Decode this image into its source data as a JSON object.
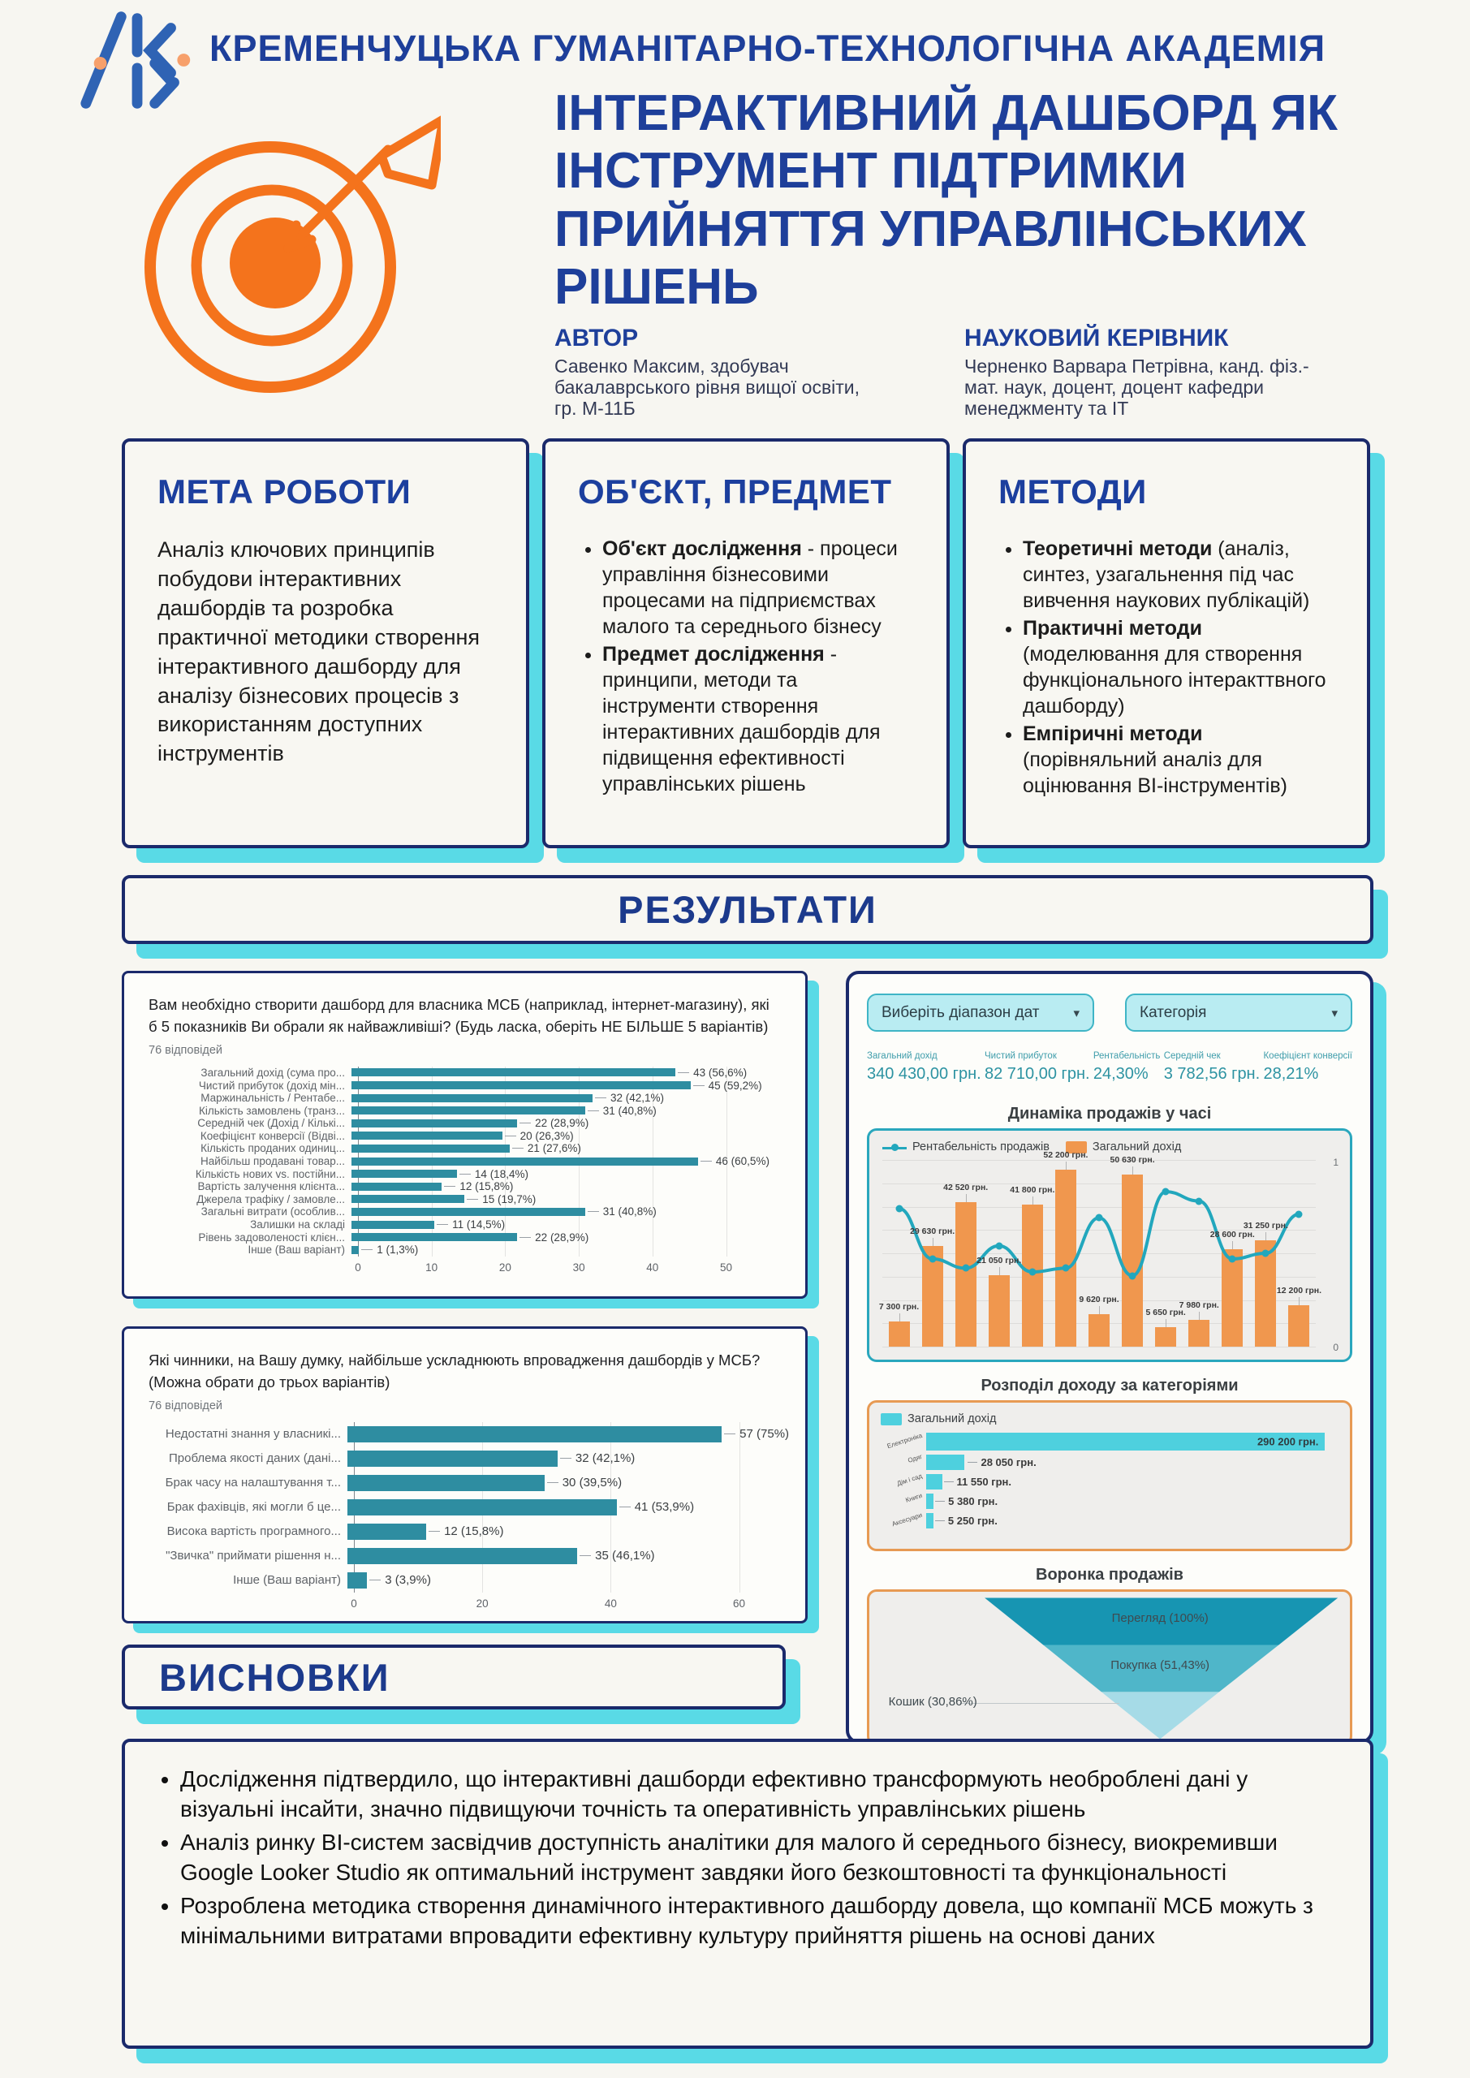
{
  "header": {
    "academy": "КРЕМЕНЧУЦЬКА ГУМАНІТАРНО-ТЕХНОЛОГІЧНА АКАДЕМІЯ"
  },
  "title": "ІНТЕРАКТИВНИЙ ДАШБОРД ЯК\nІНСТРУМЕНТ ПІДТРИМКИ\nПРИЙНЯТТЯ УПРАВЛІНСЬКИХ\nРІШЕНЬ",
  "author": {
    "heading": "АВТОР",
    "text": "Савенко Максим, здобувач\nбакалаврського рівня вищої освіти,\nгр. М-11Б"
  },
  "advisor": {
    "heading": "НАУКОВИЙ КЕРІВНИК",
    "text": "Черненко Варвара Петрівна, канд. фіз.-\nмат. наук, доцент, доцент кафедри\nменеджменту та ІТ"
  },
  "goal": {
    "heading": "МЕТА РОБОТИ",
    "text": "Аналіз ключових принципів побудови інтерактивних дашбордів та розробка практичної методики створення інтерактивного дашборду для аналізу бізнесових процесів з використанням доступних інструментів"
  },
  "object": {
    "heading": "ОБ'ЄКТ, ПРЕДМЕТ",
    "items": [
      {
        "lead": "Об'єкт дослідження",
        "rest": " - процеси управління бізнесовими процесами на підприємствах малого та середнього бізнесу"
      },
      {
        "lead": "Предмет дослідження",
        "rest": " - принципи, методи та інструменти створення інтерактивних дашбордів для підвищення ефективності управлінських рішень"
      }
    ]
  },
  "methods": {
    "heading": "МЕТОДИ",
    "items": [
      {
        "lead": "Теоретичні методи",
        "rest": " (аналіз, синтез, узагальнення під час вивчення наукових публікацій)"
      },
      {
        "lead": "Практичні методи",
        "rest": " (моделювання для створення функціонального інтеракттвного дашборду)"
      },
      {
        "lead": "Емпіричні методи",
        "rest": " (порівняльний аналіз для оцінювання BI-інструментів)"
      }
    ]
  },
  "results_heading": "РЕЗУЛЬТАТИ",
  "dashboard": {
    "filters": [
      {
        "label": "Виберіть діапазон дат",
        "caret": "▾"
      },
      {
        "label": "Категорія",
        "caret": "▾"
      }
    ],
    "kpis": [
      {
        "label": "Загальний дохід",
        "value": "340 430,00 грн."
      },
      {
        "label": "Чистий прибуток",
        "value": "82 710,00 грн."
      },
      {
        "label": "Рентабельність",
        "value": "24,30%"
      },
      {
        "label": "Середній чек",
        "value": "3 782,56 грн."
      },
      {
        "label": "Коефіцієнт конверсії",
        "value": "28,21%"
      }
    ]
  },
  "conclusions": {
    "heading": "ВИСНОВКИ",
    "bullets": [
      "Дослідження підтвердило, що інтерактивні дашборди ефективно трансформують необроблені дані у візуальні інсайти, значно підвищуючи точність та оперативність управлінських рішень",
      "Аналіз ринку BI-систем засвідчив доступність аналітики для малого й середнього бізнесу, виокремивши Google Looker Studio як оптимальний інструмент завдяки його безкоштовності та функціональності",
      "Розроблена методика створення динамічного інтерактивного дашборду довела, що компанії МСБ можуть з мінімальними витратами впровадити ефективну культуру прийняття рішень на основі даних"
    ]
  },
  "colors": {
    "navy_border": "#1b2a6b",
    "heading_blue": "#1e3f9a",
    "cyan_shadow": "#59dae6",
    "survey_teal": "#2e8da1",
    "orange_bar": "#f0974e",
    "board_cyan_bar": "#4ed0de",
    "teal_border": "#2aa7bd",
    "orange_border": "#e79a53",
    "kpi_teal": "#2d93a2",
    "logo_blue": "#2f63b4",
    "target_orange": "#f4731c"
  },
  "chart_data": [
    {
      "id": "survey_top5_metrics",
      "type": "bar",
      "orientation": "horizontal",
      "title": "Вам необхідно створити дашборд для власника МСБ (наприклад, інтернет-магазину), які б 5 показників Ви обрали як найважливіші? (Будь ласка, оберіть НЕ БІЛЬШЕ 5 варіантів)",
      "subtitle": "76 відповідей",
      "categories": [
        "Загальний дохід (сума про...",
        "Чистий прибуток (дохід мін...",
        "Маржинальність / Рентабе...",
        "Кількість замовлень (транз...",
        "Середній чек (Дохід / Кількі...",
        "Коефіцієнт конверсії (Відві...",
        "Кількість проданих одиниц...",
        "Найбільш продавані товар...",
        "Кількість нових vs. постійни...",
        "Вартість залучення клієнта...",
        "Джерела трафіку / замовле...",
        "Загальні витрати (особлив...",
        "Залишки на складі",
        "Рівень задоволеності клієн...",
        "Інше (Ваш варіант)"
      ],
      "values": [
        43,
        45,
        32,
        31,
        22,
        20,
        21,
        46,
        14,
        12,
        15,
        31,
        11,
        22,
        1
      ],
      "value_labels": [
        "43 (56,6%)",
        "45 (59,2%)",
        "32 (42,1%)",
        "31 (40,8%)",
        "22 (28,9%)",
        "20 (26,3%)",
        "21 (27,6%)",
        "46 (60,5%)",
        "14 (18,4%)",
        "12 (15,8%)",
        "15 (19,7%)",
        "31 (40,8%)",
        "11 (14,5%)",
        "22 (28,9%)",
        "1 (1,3%)"
      ],
      "xticks": [
        0,
        10,
        20,
        30,
        40,
        50
      ],
      "xmax": 57,
      "bar_color": "#2e8da1",
      "grid": true,
      "legend_position": "none"
    },
    {
      "id": "survey_adoption_barriers",
      "type": "bar",
      "orientation": "horizontal",
      "title": "Які чинники, на Вашу думку, найбільше ускладнюють впровадження дашбордів у МСБ?\n(Можна обрати до трьох варіантів)",
      "subtitle": "76 відповідей",
      "categories": [
        "Недостатні знання у власникі...",
        "Проблема якості даних (дані...",
        "Брак часу на налаштування т...",
        "Брак фахівців, які могли б це...",
        "Висока вартість програмного...",
        "\"Звичка\" приймати рішення н...",
        "Інше (Ваш варіант)"
      ],
      "values": [
        57,
        32,
        30,
        41,
        12,
        35,
        3
      ],
      "value_labels": [
        "57 (75%)",
        "32 (42,1%)",
        "30 (39,5%)",
        "41 (53,9%)",
        "12 (15,8%)",
        "35 (46,1%)",
        "3 (3,9%)"
      ],
      "xticks": [
        0,
        20,
        40,
        60
      ],
      "xmax": 66,
      "bar_color": "#2e8da1",
      "grid": true,
      "legend_position": "none"
    },
    {
      "id": "sales_dynamics",
      "type": "bar",
      "combo": "bar+line",
      "title": "Динаміка продажів у часі",
      "legend": [
        "Рентабельність продажів",
        "Загальний дохід"
      ],
      "bar_values": [
        7300,
        29630,
        42520,
        21050,
        41800,
        52200,
        9620,
        50630,
        5650,
        7980,
        28600,
        31250,
        12200
      ],
      "bar_labels": [
        "7 300 грн.",
        "29 630 грн.",
        "42 520 грн.",
        "21 050 грн.",
        "41 800 грн.",
        "52 200 грн.",
        "9 620 грн.",
        "50 630 грн.",
        "5 650 грн.",
        "7 980 грн.",
        "28 600 грн.",
        "31 250 грн.",
        "12 200 грн."
      ],
      "line_values": [
        0.74,
        0.47,
        0.42,
        0.54,
        0.4,
        0.42,
        0.69,
        0.38,
        0.83,
        0.78,
        0.47,
        0.5,
        0.71
      ],
      "ymax_bars": 55000,
      "right_axis": [
        0,
        1
      ],
      "bar_color": "#f0974e",
      "line_color": "#22a7bd",
      "legend_position": "top-left"
    },
    {
      "id": "revenue_by_category",
      "type": "bar",
      "orientation": "horizontal",
      "title": "Розподіл доходу за категоріями",
      "legend": [
        "Загальний дохід"
      ],
      "categories": [
        "Електроніка",
        "Одяг",
        "Дім і сад",
        "Книги",
        "Аксесуари"
      ],
      "values": [
        290200,
        28050,
        11550,
        5380,
        5250
      ],
      "value_labels": [
        "290 200 грн.",
        "28 050 грн.",
        "11 550 грн.",
        "5 380 грн.",
        "5 250 грн."
      ],
      "xmax": 300000,
      "bar_color": "#4ed0de",
      "legend_position": "top-left"
    },
    {
      "id": "sales_funnel",
      "type": "pie",
      "subtype": "funnel",
      "title": "Воронка продажів",
      "stages": [
        {
          "label": "Перегляд (100%)",
          "value": 100,
          "color": "#1795b2"
        },
        {
          "label": "Покупка (51,43%)",
          "value": 51.43,
          "color": "#4fb6c9"
        },
        {
          "label": "Кошик (30,86%)",
          "value": 30.86,
          "color": "#a6dbe7"
        }
      ]
    }
  ]
}
